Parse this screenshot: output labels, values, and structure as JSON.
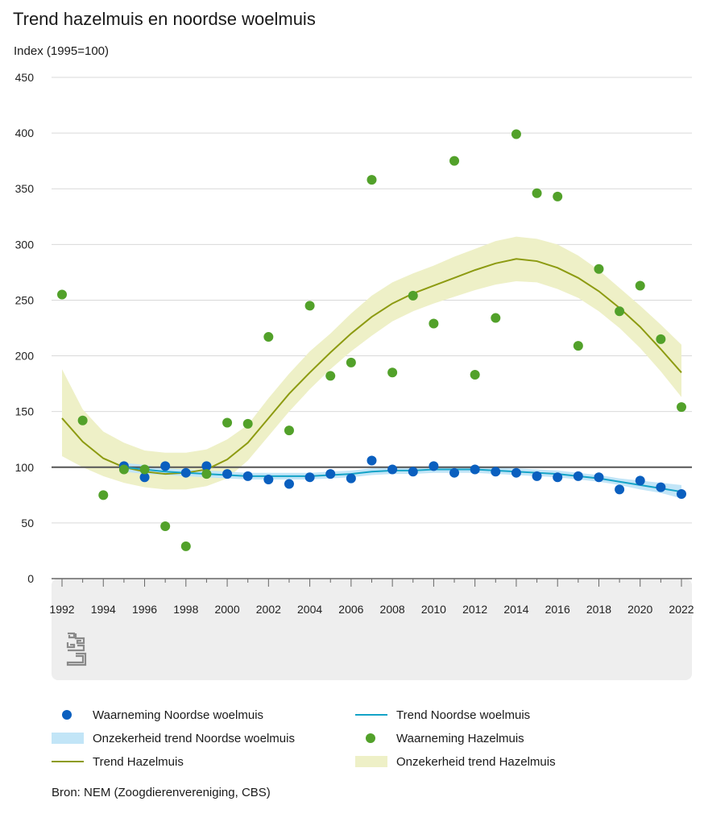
{
  "title": "Trend hazelmuis en noordse woelmuis",
  "source": "Bron: NEM (Zoogdierenvereniging, CBS)",
  "logo_text": "cbs",
  "colors": {
    "obs_woelmuis": "#0a5fbf",
    "trend_woelmuis": "#14a3c7",
    "band_woelmuis": "#c2e5f7",
    "obs_hazelmuis": "#52a12a",
    "trend_hazelmuis": "#8d9b12",
    "band_hazelmuis": "#eef0c7",
    "baseline": "#555555",
    "grid": "#d9d9d9",
    "footer_bg": "#eeeeee"
  },
  "legend": [
    {
      "label": "Waarneming Noordse woelmuis",
      "type": "dot",
      "color": "#0a5fbf"
    },
    {
      "label": "Trend Noordse woelmuis",
      "type": "line",
      "color": "#14a3c7"
    },
    {
      "label": "Onzekerheid trend Noordse woelmuis",
      "type": "band",
      "color": "#c2e5f7"
    },
    {
      "label": "Waarneming Hazelmuis",
      "type": "dot",
      "color": "#52a12a"
    },
    {
      "label": "Trend Hazelmuis",
      "type": "line",
      "color": "#8d9b12"
    },
    {
      "label": "Onzekerheid trend Hazelmuis",
      "type": "band",
      "color": "#eef0c7"
    }
  ],
  "chart_data": {
    "type": "scatter+line",
    "title": "Trend hazelmuis en noordse woelmuis",
    "ylabel": "Index (1995=100)",
    "xlabel": "",
    "ylim": [
      0,
      450
    ],
    "yticks": [
      0,
      50,
      100,
      150,
      200,
      250,
      300,
      350,
      400,
      450
    ],
    "xlim": [
      1992,
      2022
    ],
    "xticks": [
      1992,
      1994,
      1996,
      1998,
      2000,
      2002,
      2004,
      2006,
      2008,
      2010,
      2012,
      2014,
      2016,
      2018,
      2020,
      2022
    ],
    "reference_line": 100,
    "grid": true,
    "legend_position": "bottom",
    "series": [
      {
        "name": "Waarneming Noordse woelmuis",
        "kind": "points",
        "x": [
          1995,
          1996,
          1997,
          1998,
          1999,
          2000,
          2001,
          2002,
          2003,
          2004,
          2005,
          2006,
          2007,
          2008,
          2009,
          2010,
          2011,
          2012,
          2013,
          2014,
          2015,
          2016,
          2017,
          2018,
          2019,
          2020,
          2021,
          2022
        ],
        "y": [
          101,
          91,
          101,
          95,
          101,
          94,
          92,
          89,
          85,
          91,
          94,
          90,
          106,
          98,
          96,
          101,
          95,
          98,
          96,
          95,
          92,
          91,
          92,
          91,
          80,
          88,
          82,
          76
        ]
      },
      {
        "name": "Trend Noordse woelmuis",
        "kind": "line",
        "x": [
          1995,
          1996,
          1997,
          1998,
          1999,
          2000,
          2001,
          2002,
          2003,
          2004,
          2005,
          2006,
          2007,
          2008,
          2009,
          2010,
          2011,
          2012,
          2013,
          2014,
          2015,
          2016,
          2017,
          2018,
          2019,
          2020,
          2021,
          2022
        ],
        "y": [
          100,
          98,
          96,
          95,
          94,
          93,
          92,
          92,
          92,
          92,
          93,
          94,
          96,
          97,
          97,
          98,
          98,
          98,
          97,
          96,
          95,
          94,
          92,
          90,
          87,
          84,
          81,
          78
        ]
      },
      {
        "name": "Onzekerheid trend Noordse woelmuis",
        "kind": "band",
        "x": [
          1995,
          1996,
          1997,
          1998,
          1999,
          2000,
          2001,
          2002,
          2003,
          2004,
          2005,
          2006,
          2007,
          2008,
          2009,
          2010,
          2011,
          2012,
          2013,
          2014,
          2015,
          2016,
          2017,
          2018,
          2019,
          2020,
          2021,
          2022
        ],
        "lower": [
          96,
          94,
          93,
          92,
          91,
          90,
          89,
          89,
          89,
          89,
          90,
          91,
          93,
          94,
          94,
          95,
          95,
          95,
          94,
          93,
          92,
          91,
          89,
          87,
          84,
          80,
          77,
          72
        ],
        "upper": [
          104,
          102,
          99,
          98,
          97,
          96,
          95,
          95,
          95,
          95,
          96,
          97,
          99,
          100,
          100,
          101,
          101,
          101,
          100,
          99,
          98,
          97,
          95,
          93,
          90,
          88,
          86,
          84
        ]
      },
      {
        "name": "Waarneming Hazelmuis",
        "kind": "points",
        "x": [
          1992,
          1993,
          1994,
          1995,
          1996,
          1997,
          1998,
          1999,
          2000,
          2001,
          2002,
          2003,
          2004,
          2005,
          2006,
          2007,
          2008,
          2009,
          2010,
          2011,
          2012,
          2013,
          2014,
          2015,
          2016,
          2017,
          2018,
          2019,
          2020,
          2021,
          2022
        ],
        "y": [
          255,
          142,
          75,
          98,
          98,
          47,
          29,
          94,
          140,
          139,
          217,
          133,
          245,
          182,
          194,
          358,
          185,
          254,
          229,
          375,
          183,
          234,
          399,
          346,
          343,
          209,
          278,
          240,
          263,
          215,
          154
        ]
      },
      {
        "name": "Trend Hazelmuis",
        "kind": "line",
        "x": [
          1992,
          1993,
          1994,
          1995,
          1996,
          1997,
          1998,
          1999,
          2000,
          2001,
          2002,
          2003,
          2004,
          2005,
          2006,
          2007,
          2008,
          2009,
          2010,
          2011,
          2012,
          2013,
          2014,
          2015,
          2016,
          2017,
          2018,
          2019,
          2020,
          2021,
          2022
        ],
        "y": [
          144,
          123,
          108,
          100,
          96,
          94,
          95,
          98,
          107,
          122,
          144,
          166,
          185,
          203,
          220,
          235,
          247,
          256,
          263,
          270,
          277,
          283,
          287,
          285,
          279,
          270,
          258,
          243,
          226,
          206,
          185
        ]
      },
      {
        "name": "Onzekerheid trend Hazelmuis",
        "kind": "band",
        "x": [
          1992,
          1993,
          1994,
          1995,
          1996,
          1997,
          1998,
          1999,
          2000,
          2001,
          2002,
          2003,
          2004,
          2005,
          2006,
          2007,
          2008,
          2009,
          2010,
          2011,
          2012,
          2013,
          2014,
          2015,
          2016,
          2017,
          2018,
          2019,
          2020,
          2021,
          2022
        ],
        "lower": [
          110,
          100,
          92,
          86,
          82,
          80,
          80,
          83,
          90,
          106,
          128,
          150,
          170,
          188,
          204,
          218,
          231,
          240,
          247,
          253,
          259,
          264,
          267,
          266,
          260,
          252,
          240,
          225,
          207,
          186,
          163
        ],
        "upper": [
          188,
          152,
          132,
          122,
          115,
          113,
          113,
          116,
          125,
          138,
          162,
          184,
          204,
          220,
          238,
          254,
          266,
          274,
          281,
          289,
          296,
          303,
          307,
          305,
          300,
          290,
          277,
          261,
          245,
          228,
          210
        ]
      }
    ]
  }
}
